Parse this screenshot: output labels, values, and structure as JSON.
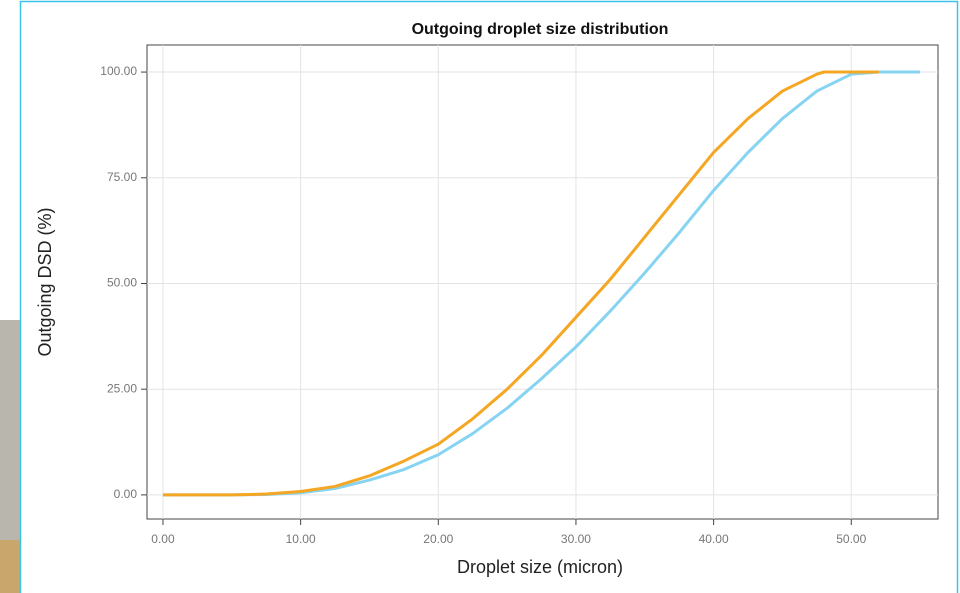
{
  "chart_data": {
    "type": "line",
    "title": "Outgoing droplet size distribution",
    "x_label": "Droplet size (micron)",
    "y_label": "Outgoing DSD (%)",
    "xlim": [
      -1.16,
      56.3
    ],
    "ylim": [
      -5.7,
      106.4
    ],
    "xticks": [
      {
        "value": 0,
        "label": "0.00"
      },
      {
        "value": 10,
        "label": "10.00"
      },
      {
        "value": 20,
        "label": "20.00"
      },
      {
        "value": 30,
        "label": "30.00"
      },
      {
        "value": 40,
        "label": "40.00"
      },
      {
        "value": 50,
        "label": "50.00"
      }
    ],
    "yticks": [
      {
        "value": 0,
        "label": "0.00"
      },
      {
        "value": 25,
        "label": "25.00"
      },
      {
        "value": 50,
        "label": "50.00"
      },
      {
        "value": 75,
        "label": "75.00"
      },
      {
        "value": 100,
        "label": "100.00"
      }
    ],
    "grid": true,
    "series": [
      {
        "color": "#87d3f2",
        "x": [
          0,
          5,
          7.5,
          10,
          12.5,
          15,
          17.5,
          20,
          22.5,
          25,
          27.5,
          30,
          32.5,
          35,
          37.5,
          40,
          42.5,
          45,
          47.5,
          50,
          52,
          55
        ],
        "values": [
          0,
          0,
          0.1,
          0.5,
          1.5,
          3.5,
          6,
          9.5,
          14.5,
          20.5,
          27.5,
          35,
          43.5,
          52.5,
          62,
          72,
          81,
          89,
          95.5,
          99.5,
          100,
          100
        ]
      },
      {
        "color": "#f5a623",
        "x": [
          0,
          5,
          7.5,
          10,
          12.5,
          15,
          17.5,
          20,
          22.5,
          25,
          27.5,
          30,
          32.5,
          35,
          37.5,
          40,
          42.5,
          45,
          47.5,
          48,
          50,
          52
        ],
        "values": [
          0,
          0,
          0.2,
          0.8,
          2,
          4.5,
          8,
          12,
          18,
          25,
          33,
          42,
          51,
          61,
          71,
          81,
          89,
          95.5,
          99.5,
          100,
          100,
          100
        ]
      }
    ]
  }
}
